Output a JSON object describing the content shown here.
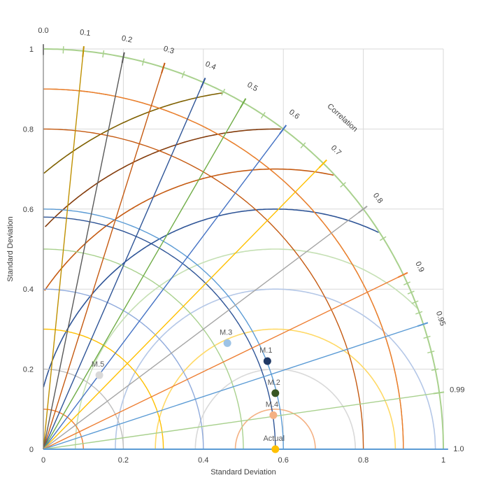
{
  "chart_data": {
    "type": "scatter",
    "subtype": "taylor-diagram",
    "title": "",
    "xlabel": "Standard Deviation",
    "ylabel": "Standard Deviation",
    "arc_label": "Correlation",
    "xlim": [
      0,
      1
    ],
    "ylim": [
      0,
      1
    ],
    "grid": true,
    "x_ticks": [
      "0",
      "0.2",
      "0.4",
      "0.6",
      "0.8",
      "1"
    ],
    "x_tick_values": [
      0,
      0.2,
      0.4,
      0.6,
      0.8,
      1
    ],
    "y_ticks": [
      "0",
      "0.2",
      "0.4",
      "0.6",
      "0.8",
      "1"
    ],
    "y_tick_values": [
      0,
      0.2,
      0.4,
      0.6,
      0.8,
      1
    ],
    "correlation_ticks": [
      "0.0",
      "0.1",
      "0.2",
      "0.3",
      "0.4",
      "0.5",
      "0.6",
      "0.7",
      "0.8",
      "0.9",
      "0.95",
      "0.99",
      "1.0"
    ],
    "correlation_values": [
      0.0,
      0.1,
      0.2,
      0.3,
      0.4,
      0.5,
      0.6,
      0.7,
      0.8,
      0.9,
      0.95,
      0.99,
      1.0
    ],
    "correlation_colors": [
      "#7f7f7f",
      "#bf9000",
      "#595959",
      "#c55a11",
      "#2f5597",
      "#70ad47",
      "#4472c4",
      "#ffc000",
      "#a5a5a5",
      "#ed7d31",
      "#5b9bd5",
      "#a9d18e",
      "#5b9bd5"
    ],
    "std_arcs": [
      0.1,
      0.2,
      0.3,
      0.4,
      0.5,
      0.6,
      0.8,
      0.9,
      1.0
    ],
    "std_arc_colors": [
      "#ed7d31",
      "#bfbfbf",
      "#ffc000",
      "#8faadc",
      "#a9d18e",
      "#5b9bd5",
      "#c55a11",
      "#bf9000",
      "#a9d18e"
    ],
    "rmsd_center": 0.58,
    "rmsd_arcs": [
      0.1,
      0.2,
      0.3,
      0.4,
      0.5,
      0.6,
      0.7,
      0.8,
      0.9
    ],
    "rmsd_arc_colors": [
      "#f4b183",
      "#d9d9d9",
      "#ffd966",
      "#b4c7e7",
      "#c5e0b4",
      "#2f5597",
      "#c55a11",
      "#843c0c",
      "#7f6000"
    ],
    "extra_circles": [
      {
        "cx": 0,
        "r": 0.58,
        "color": "#2f5597"
      },
      {
        "cx": 0,
        "r": 0.9,
        "color": "#ed7d31"
      }
    ],
    "series": [
      {
        "name": "M.1",
        "x": 0.56,
        "y": 0.22,
        "color": "#1f3864"
      },
      {
        "name": "M.2",
        "x": 0.58,
        "y": 0.14,
        "color": "#375623"
      },
      {
        "name": "M.3",
        "x": 0.46,
        "y": 0.265,
        "color": "#9dc3e6"
      },
      {
        "name": "M.4",
        "x": 0.575,
        "y": 0.085,
        "color": "#f4b183"
      },
      {
        "name": "M.5",
        "x": 0.14,
        "y": 0.185,
        "color": "#d9d9d9"
      },
      {
        "name": "Actual",
        "x": 0.58,
        "y": 0.0,
        "color": "#ffc000"
      }
    ]
  }
}
